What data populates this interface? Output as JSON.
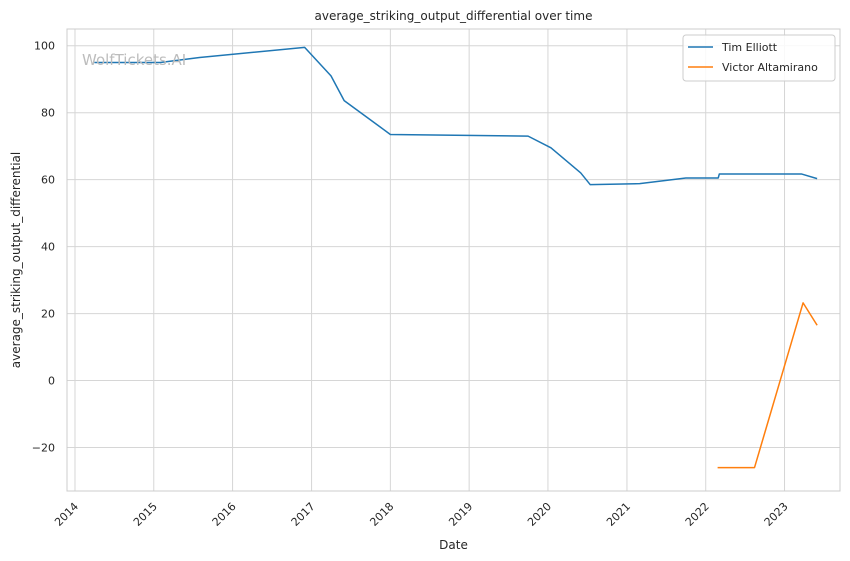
{
  "chart_data": {
    "type": "line",
    "title": "average_striking_output_differential over time",
    "xlabel": "Date",
    "ylabel": "average_striking_output_differential",
    "watermark": "WolfTickets.AI",
    "xlim": [
      "2013-11-25",
      "2023-09-15"
    ],
    "ylim": [
      -33,
      105
    ],
    "x_ticks": [
      "2014",
      "2015",
      "2016",
      "2017",
      "2018",
      "2019",
      "2020",
      "2021",
      "2022",
      "2023"
    ],
    "y_ticks": [
      -20,
      0,
      20,
      40,
      60,
      80,
      100
    ],
    "y_tick_labels": [
      "−20",
      "0",
      "20",
      "40",
      "60",
      "80",
      "100"
    ],
    "grid": true,
    "legend_position": "top-right",
    "series": [
      {
        "name": "Tim Elliott",
        "color": "#1f77b4",
        "points": [
          [
            "2014-04-01",
            95.0
          ],
          [
            "2015-01-31",
            95.0
          ],
          [
            "2015-08-01",
            96.5
          ],
          [
            "2016-11-30",
            99.5
          ],
          [
            "2017-04-01",
            91.0
          ],
          [
            "2017-06-01",
            83.6
          ],
          [
            "2018-01-01",
            73.5
          ],
          [
            "2019-10-01",
            73.0
          ],
          [
            "2020-01-15",
            69.5
          ],
          [
            "2020-06-01",
            62.0
          ],
          [
            "2020-07-15",
            58.5
          ],
          [
            "2021-03-01",
            58.8
          ],
          [
            "2021-10-01",
            60.5
          ],
          [
            "2022-02-28",
            60.5
          ],
          [
            "2022-03-05",
            61.7
          ],
          [
            "2023-03-20",
            61.7
          ],
          [
            "2023-06-01",
            60.3
          ]
        ]
      },
      {
        "name": "Victor Altamirano",
        "color": "#ff7f0e",
        "points": [
          [
            "2022-02-25",
            -26.0
          ],
          [
            "2022-08-15",
            -26.0
          ],
          [
            "2023-03-28",
            23.2
          ],
          [
            "2023-06-01",
            16.5
          ]
        ]
      }
    ]
  }
}
